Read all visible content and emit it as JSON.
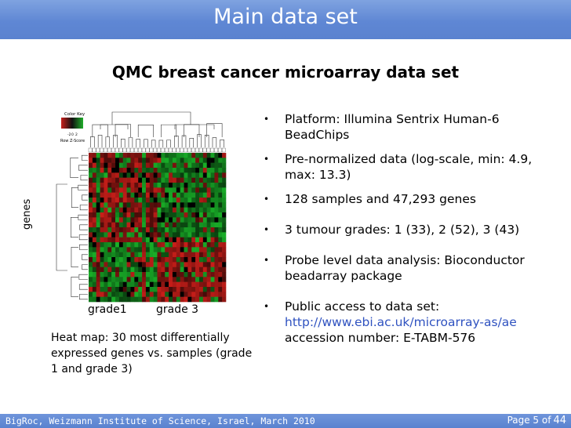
{
  "header": {
    "title": "Main data set"
  },
  "subtitle": "QMC breast cancer microarray data set",
  "bullets": [
    {
      "text": "Platform: Illumina Sentrix Human-6 BeadChips"
    },
    {
      "text": "Pre-normalized data (log-scale, min: 4.9, max: 13.3)"
    },
    {
      "text": "128 samples and 47,293 genes"
    },
    {
      "text": "3 tumour grades: 1 (33), 2 (52), 3 (43)"
    },
    {
      "text": "Probe level data analysis: Bioconductor beadarray package"
    },
    {
      "text": "Public access to data set:",
      "link": "http://www.ebi.ac.uk/microarray-as/ae",
      "text2": "accession number: E-TABM-576"
    }
  ],
  "figure": {
    "genes_label": "genes",
    "grade1_label": "grade1",
    "grade3_label": "grade 3",
    "color_key_title": "Color Key",
    "color_key_axis": "Row Z-Score",
    "color_key_ticks": [
      "-2",
      "0",
      "2"
    ],
    "heatmap_colors": {
      "high": "#c8201c",
      "low": "#1fae2a",
      "mid": "#000000"
    }
  },
  "caption": "Heat map: 30 most differentially expressed genes vs. samples (grade 1 and grade 3)",
  "footer": {
    "left": "BigRoc, Weizmann Institute of Science, Israel, March 2010",
    "page_prefix": "Page 5 of",
    "page_total": "44"
  }
}
